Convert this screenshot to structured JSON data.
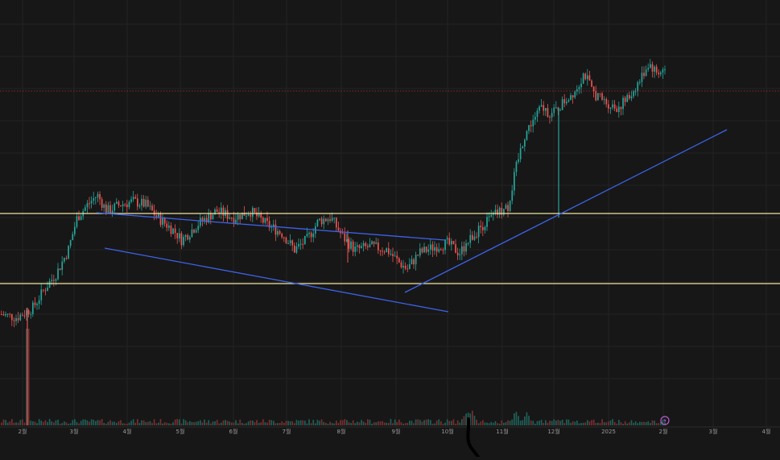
{
  "chart_data": {
    "type": "candlestick",
    "title": "",
    "xlabel": "",
    "ylabel": "",
    "x_tick_labels": [
      "2월",
      "3월",
      "4월",
      "5월",
      "6월",
      "7월",
      "8월",
      "9월",
      "10월",
      "11월",
      "12월",
      "2025",
      "2월",
      "3월",
      "4월"
    ],
    "y_scale": "linear",
    "series": [
      {
        "values": [
          {
            "x": "2월",
            "y": 0.1
          },
          {
            "x": "3월",
            "y": 0.36
          },
          {
            "x": "3월",
            "y": 0.46
          },
          {
            "x": "4월",
            "y": 0.44
          },
          {
            "x": "5월",
            "y": 0.38
          },
          {
            "x": "6월",
            "y": 0.42
          },
          {
            "x": "7월",
            "y": 0.33
          },
          {
            "x": "8월",
            "y": 0.38
          },
          {
            "x": "8월",
            "y": 0.32
          },
          {
            "x": "9월",
            "y": 0.27
          },
          {
            "x": "10월",
            "y": 0.33
          },
          {
            "x": "11월",
            "y": 0.46
          },
          {
            "x": "11월",
            "y": 0.66
          },
          {
            "x": "12월",
            "y": 0.8
          },
          {
            "x": "2025",
            "y": 0.74
          },
          {
            "x": "2025",
            "y": 0.78
          },
          {
            "x": "2월",
            "y": 0.88
          },
          {
            "x": "2월",
            "y": 0.86
          }
        ]
      }
    ],
    "up_color": "#26a69a",
    "down_color": "#ef5350",
    "horizontal_levels": [
      {
        "color": "#f2e6a0"
      },
      {
        "color": "#f2e6a0"
      },
      {
        "color": "#a8333a",
        "style": "dotted"
      }
    ],
    "trendlines": [
      {
        "color": "#3d63ea",
        "label": "channel upper"
      },
      {
        "color": "#3d63ea",
        "label": "channel lower"
      },
      {
        "color": "#3d63ea",
        "label": "uptrend support"
      }
    ],
    "grid": true,
    "volume_histogram": true
  },
  "footer_mark": {
    "icon": "lightning-badge-icon",
    "color": "#b25dc8"
  }
}
